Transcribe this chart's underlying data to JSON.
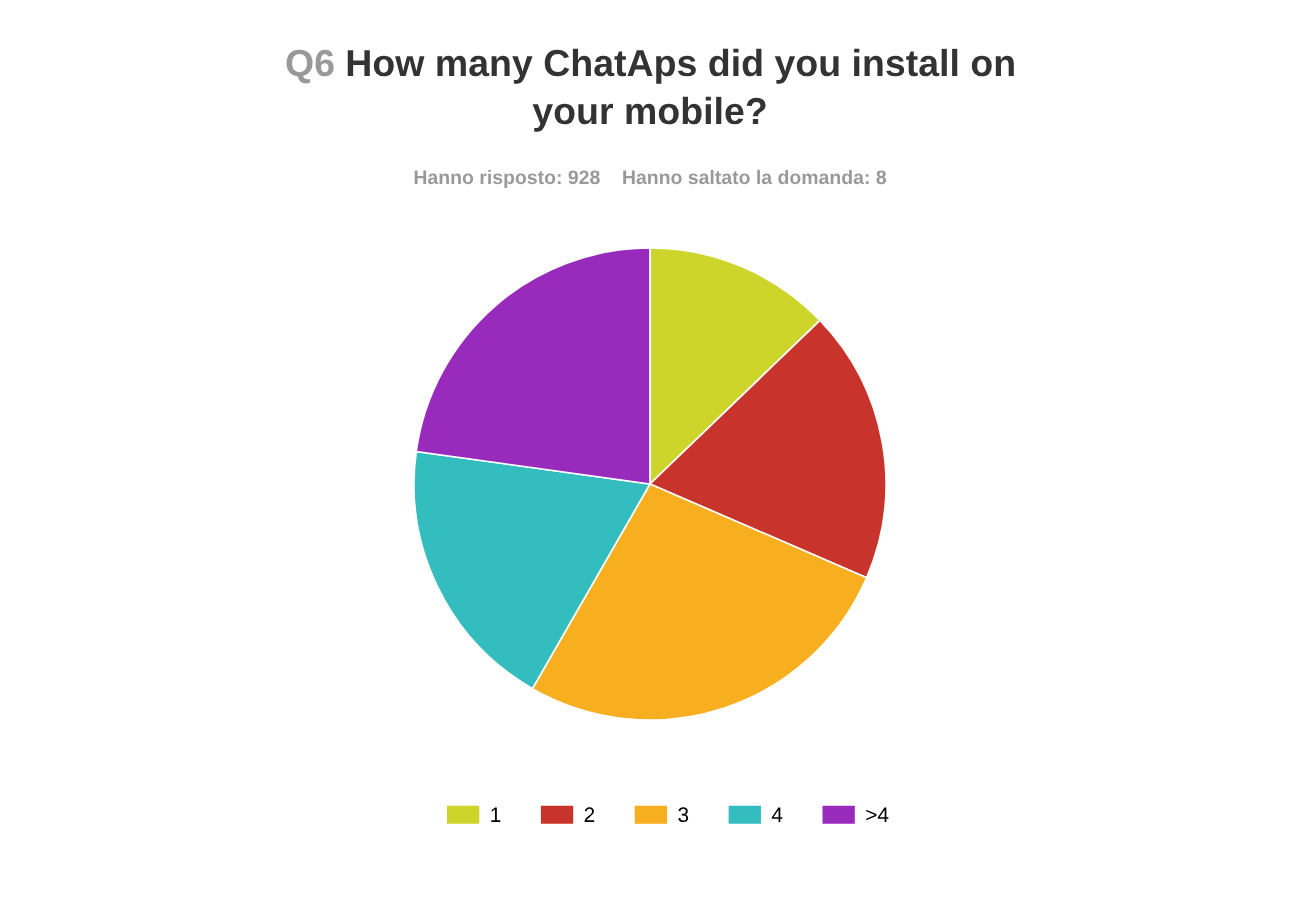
{
  "chart_data": {
    "type": "pie",
    "title": "Q6 How many ChatAps did you install on your mobile?",
    "subtitle": "Hanno risposto: 928    Hanno saltato la domanda: 8",
    "categories": [
      "1",
      "2",
      "3",
      "4",
      ">4"
    ],
    "values": [
      12.8,
      18.7,
      26.8,
      18.9,
      22.8
    ],
    "colors": [
      "#cdd42a",
      "#c8342b",
      "#f7ae1f",
      "#33bdbe",
      "#982abc"
    ],
    "legend": "bottom"
  }
}
